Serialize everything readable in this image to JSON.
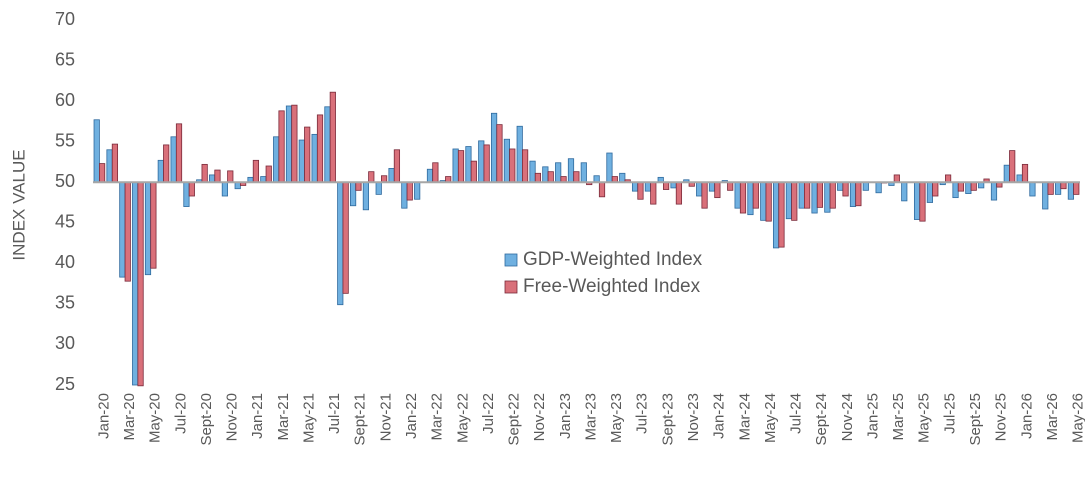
{
  "chart_data": {
    "type": "bar",
    "y_axis_label": "INDEX VALUE",
    "categories": [
      "Jan-20",
      null,
      "Mar-20",
      null,
      "May-20",
      null,
      "Jul-20",
      null,
      "Sept-20",
      null,
      "Nov-20",
      null,
      "Jan-21",
      null,
      "Mar-21",
      null,
      "May-21",
      null,
      "Jul-21",
      null,
      "Sept-21",
      null,
      "Nov-21",
      null,
      "Jan-22",
      null,
      "Mar-22",
      null,
      "May-22",
      null,
      "Jul-22",
      null,
      "Sept-22",
      null,
      "Nov-22",
      null,
      "Jan-23",
      null,
      "Mar-23",
      null,
      "May-23",
      null,
      "Jul-23",
      null,
      "Sept-23",
      null,
      "Nov-23",
      null,
      "Jan-24",
      null,
      "Mar-24",
      null,
      "May-24",
      null,
      "Jul-24",
      null,
      "Sept-24",
      null,
      "Nov-24",
      null,
      "Jan-25",
      null,
      "Mar-25",
      null,
      "May-25",
      null,
      "Jul-25",
      null,
      "Sept-25",
      null,
      "Nov-25",
      null,
      "Jan-26",
      null,
      "Mar-26",
      null,
      "May-26"
    ],
    "series": [
      {
        "name": "GDP-Weighted Index",
        "color": "#6fb0e0",
        "stroke": "#2f6a9e",
        "values": [
          57.7,
          54.0,
          38.3,
          25.0,
          38.6,
          52.7,
          55.6,
          47.0,
          50.3,
          50.9,
          48.3,
          49.2,
          50.6,
          50.7,
          55.6,
          59.4,
          55.2,
          55.9,
          59.3,
          34.9,
          47.1,
          46.6,
          48.5,
          51.7,
          46.8,
          47.9,
          51.6,
          50.2,
          54.1,
          54.4,
          55.1,
          58.5,
          55.3,
          56.9,
          52.6,
          51.9,
          52.4,
          52.9,
          52.4,
          50.8,
          53.6,
          51.1,
          48.9,
          48.9,
          50.6,
          49.3,
          50.3,
          48.3,
          48.9,
          50.2,
          46.8,
          46.0,
          45.3,
          41.9,
          45.5,
          46.8,
          46.2,
          46.3,
          49.0,
          47.0,
          49.0,
          48.7,
          49.6,
          47.7,
          45.4,
          47.5,
          49.7,
          48.1,
          48.6,
          49.3,
          47.8,
          52.1,
          50.9,
          48.3,
          46.7,
          48.5,
          47.9
        ]
      },
      {
        "name": "Free-Weighted Index",
        "color": "#d9707a",
        "stroke": "#7a2a3a",
        "values": [
          52.3,
          54.7,
          37.8,
          24.9,
          39.4,
          54.6,
          57.2,
          48.3,
          52.2,
          51.5,
          51.4,
          49.6,
          52.7,
          52.0,
          58.8,
          59.5,
          56.8,
          58.3,
          61.1,
          36.3,
          49.0,
          51.3,
          50.8,
          54.0,
          47.8,
          50.0,
          52.4,
          50.7,
          53.9,
          52.6,
          54.6,
          57.1,
          54.1,
          54.0,
          51.1,
          51.3,
          50.7,
          51.3,
          49.7,
          48.2,
          50.7,
          50.3,
          47.9,
          47.3,
          49.1,
          47.3,
          49.5,
          46.8,
          48.1,
          49.0,
          46.2,
          46.8,
          45.2,
          42.0,
          45.3,
          46.8,
          46.9,
          46.8,
          48.3,
          47.1,
          50.0,
          49.9,
          50.9,
          50.0,
          45.2,
          48.3,
          50.9,
          48.9,
          49.0,
          50.4,
          49.4,
          53.9,
          52.2,
          50.0,
          48.5,
          49.2,
          48.5
        ]
      }
    ],
    "baseline": 50,
    "ylim": [
      25,
      70
    ],
    "yticks": [
      25,
      30,
      35,
      40,
      45,
      50,
      55,
      60,
      65,
      70
    ],
    "grid": false,
    "legend": "center"
  }
}
